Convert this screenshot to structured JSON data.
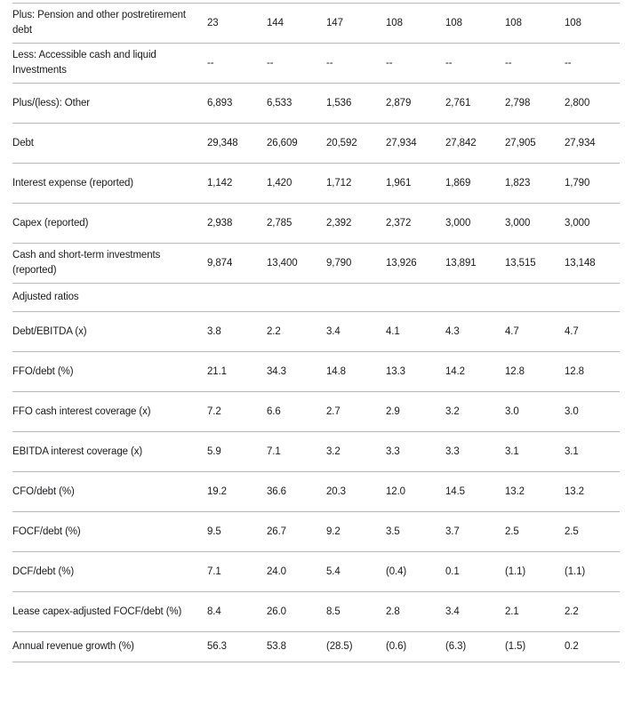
{
  "document": {
    "section_header": "Adjusted ratios"
  },
  "colors": {
    "text": "#1b1b1f",
    "divider": "#b8b8b8",
    "background": "#ffffff"
  },
  "table": {
    "column_count": 7,
    "rows": [
      {
        "type": "data",
        "label": "Plus: Pension and other postretirement debt",
        "values": [
          "23",
          "144",
          "147",
          "108",
          "108",
          "108",
          "108"
        ]
      },
      {
        "type": "data",
        "label": "Less: Accessible cash and liquid Investments",
        "values": [
          "--",
          "--",
          "--",
          "--",
          "--",
          "--",
          "--"
        ]
      },
      {
        "type": "data",
        "label": "Plus/(less): Other",
        "values": [
          "6,893",
          "6,533",
          "1,536",
          "2,879",
          "2,761",
          "2,798",
          "2,800"
        ]
      },
      {
        "type": "data",
        "label": "Debt",
        "values": [
          "29,348",
          "26,609",
          "20,592",
          "27,934",
          "27,842",
          "27,905",
          "27,934"
        ]
      },
      {
        "type": "data",
        "label": "Interest expense (reported)",
        "values": [
          "1,142",
          "1,420",
          "1,712",
          "1,961",
          "1,869",
          "1,823",
          "1,790"
        ]
      },
      {
        "type": "data",
        "label": "Capex (reported)",
        "values": [
          "2,938",
          "2,785",
          "2,392",
          "2,372",
          "3,000",
          "3,000",
          "3,000"
        ]
      },
      {
        "type": "data",
        "label": "Cash and short-term investments (reported)",
        "values": [
          "9,874",
          "13,400",
          "9,790",
          "13,926",
          "13,891",
          "13,515",
          "13,148"
        ]
      },
      {
        "type": "section",
        "label": "Adjusted ratios",
        "values": []
      },
      {
        "type": "data",
        "label": "Debt/EBITDA (x)",
        "values": [
          "3.8",
          "2.2",
          "3.4",
          "4.1",
          "4.3",
          "4.7",
          "4.7"
        ]
      },
      {
        "type": "data",
        "label": "FFO/debt (%)",
        "values": [
          "21.1",
          "34.3",
          "14.8",
          "13.3",
          "14.2",
          "12.8",
          "12.8"
        ]
      },
      {
        "type": "data",
        "label": "FFO cash interest coverage (x)",
        "values": [
          "7.2",
          "6.6",
          "2.7",
          "2.9",
          "3.2",
          "3.0",
          "3.0"
        ]
      },
      {
        "type": "data",
        "label": "EBITDA interest coverage (x)",
        "values": [
          "5.9",
          "7.1",
          "3.2",
          "3.3",
          "3.3",
          "3.1",
          "3.1"
        ]
      },
      {
        "type": "data",
        "label": "CFO/debt (%)",
        "values": [
          "19.2",
          "36.6",
          "20.3",
          "12.0",
          "14.5",
          "13.2",
          "13.2"
        ]
      },
      {
        "type": "data",
        "label": "FOCF/debt (%)",
        "values": [
          "9.5",
          "26.7",
          "9.2",
          "3.5",
          "3.7",
          "2.5",
          "2.5"
        ]
      },
      {
        "type": "data",
        "label": "DCF/debt (%)",
        "values": [
          "7.1",
          "24.0",
          "5.4",
          "(0.4)",
          "0.1",
          "(1.1)",
          "(1.1)"
        ]
      },
      {
        "type": "data",
        "label": "Lease capex-adjusted FOCF/debt (%)",
        "values": [
          "8.4",
          "26.0",
          "8.5",
          "2.8",
          "3.4",
          "2.1",
          "2.2"
        ]
      },
      {
        "type": "data",
        "label": "Annual revenue growth (%)",
        "values": [
          "56.3",
          "53.8",
          "(28.5)",
          "(0.6)",
          "(6.3)",
          "(1.5)",
          "0.2"
        ]
      }
    ]
  }
}
